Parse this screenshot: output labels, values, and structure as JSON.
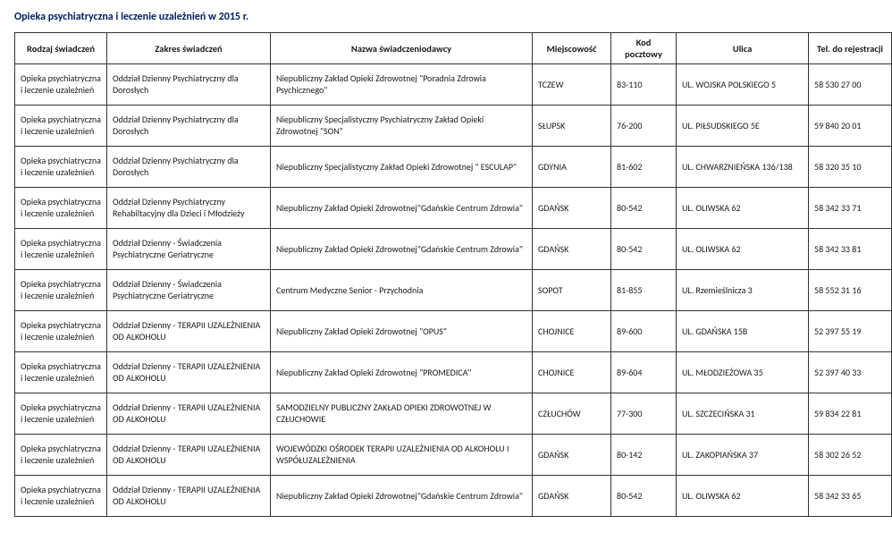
{
  "docTitle": "Opieka psychiatryczna i leczenie uzależnień w 2015 r.",
  "columns": [
    "Rodzaj świadczeń",
    "Zakres świadczeń",
    "Nazwa świadczeniodawcy",
    "Miejscowość",
    "Kod pocztowy",
    "Ulica",
    "Tel.  do rejestracji"
  ],
  "rows": [
    {
      "rodzaj": "Opieka psychiatryczna i leczenie uzależnień",
      "zakres": "Oddział Dzienny Psychiatryczny dla Dorosłych",
      "nazwa": "Niepubliczny Zakład Opieki Zdrowotnej \"Poradnia Zdrowia Psychicznego\"",
      "miejsc": "TCZEW",
      "kod": "83-110",
      "ulica": "UL. WOJSKA POLSKIEGO 5",
      "tel": "58 530 27 00"
    },
    {
      "rodzaj": "Opieka psychiatryczna i leczenie uzależnień",
      "zakres": "Oddział Dzienny Psychiatryczny dla Dorosłych",
      "nazwa": "Niepubliczny Specjalistyczny Psychiatryczny Zakład Opieki Zdrowotnej \"SON\"",
      "miejsc": "SŁUPSK",
      "kod": "76-200",
      "ulica": "UL. PIŁSUDSKIEGO 5E",
      "tel": "59 840 20 01"
    },
    {
      "rodzaj": "Opieka psychiatryczna i leczenie uzależnień",
      "zakres": "Oddział Dzienny Psychiatryczny dla Dorosłych",
      "nazwa": "Niepubliczny Specjalistyczny Zakład Opieki Zdrowotnej \" ESCULAP\"",
      "miejsc": "GDYNIA",
      "kod": "81-602",
      "ulica": "UL. CHWARZNIEŃSKA 136/138",
      "tel": "58 320 35 10"
    },
    {
      "rodzaj": "Opieka psychiatryczna i leczenie uzależnień",
      "zakres": "Oddział Dzienny Psychiatryczny Rehabiltacyjny dla Dzieci i Młodzieży",
      "nazwa": "Niepubliczny Zakład Opieki Zdrowotnej\"Gdańskie Centrum Zdrowia\"",
      "miejsc": "GDAŃSK",
      "kod": "80-542",
      "ulica": "UL. OLIWSKA 62",
      "tel": "58 342 33 71"
    },
    {
      "rodzaj": "Opieka psychiatryczna i leczenie uzależnień",
      "zakres": "Oddział Dzienny - Świadczenia Psychiatryczne Geriatryczne",
      "nazwa": "Niepubliczny Zakład Opieki Zdrowotnej\"Gdańskie Centrum Zdrowia\"",
      "miejsc": "GDAŃSK",
      "kod": "80-542",
      "ulica": "UL. OLIWSKA 62",
      "tel": "58 342 33 81"
    },
    {
      "rodzaj": "Opieka psychiatryczna i leczenie uzależnień",
      "zakres": "Oddział Dzienny - Świadczenia Psychiatryczne Geriatryczne",
      "nazwa": "Centrum Medyczne Senior - Przychodnia",
      "miejsc": "SOPOT",
      "kod": "81-855",
      "ulica": "UL. Rzemieślnicza 3",
      "tel": "58 552 31 16"
    },
    {
      "rodzaj": "Opieka psychiatryczna i leczenie uzależnień",
      "zakres": "Oddział Dzienny - TERAPII UZALEŻNIENIA OD ALKOHOLU",
      "nazwa": "Niepubliczny Zakład Opieki Zdrowotnej \"OPUS\"",
      "miejsc": "CHOJNICE",
      "kod": "89-600",
      "ulica": "UL. GDAŃSKA 15B",
      "tel": "52 397 55 19"
    },
    {
      "rodzaj": "Opieka psychiatryczna i leczenie uzależnień",
      "zakres": "Oddział Dzienny - TERAPII UZALEŻNIENIA OD ALKOHOLU",
      "nazwa": "Niepubliczny Zakład Opieki Zdrowotnej \"PROMEDICA\"",
      "miejsc": "CHOJNICE",
      "kod": "89-604",
      "ulica": "UL. MŁODZIEŻOWA 35",
      "tel": "52 397 40 33"
    },
    {
      "rodzaj": "Opieka psychiatryczna i leczenie uzależnień",
      "zakres": "Oddział Dzienny - TERAPII UZALEŻNIENIA OD ALKOHOLU",
      "nazwa": "SAMODZIELNY PUBLICZNY ZAKŁAD OPIEKI ZDROWOTNEJ W CZŁUCHOWIE",
      "miejsc": "CZŁUCHÓW",
      "kod": "77-300",
      "ulica": "UL. SZCZECIŃSKA 31",
      "tel": "59 834 22 81"
    },
    {
      "rodzaj": "Opieka psychiatryczna i leczenie uzależnień",
      "zakres": "Oddział Dzienny - TERAPII UZALEŻNIENIA OD ALKOHOLU",
      "nazwa": "WOJEWÓDZKI OŚRODEK TERAPII UZALEŻNIENIA OD ALKOHOLU I WSPÓŁUZALEŻNIENIA",
      "miejsc": "GDAŃSK",
      "kod": "80-142",
      "ulica": "UL. ZAKOPIAŃSKA 37",
      "tel": "58 302 26 52"
    },
    {
      "rodzaj": "Opieka psychiatryczna i leczenie uzależnień",
      "zakres": "Oddział Dzienny - TERAPII UZALEŻNIENIA OD ALKOHOLU",
      "nazwa": "Niepubliczny Zakład Opieki Zdrowotnej\"Gdańskie Centrum Zdrowia\"",
      "miejsc": "GDAŃSK",
      "kod": "80-542",
      "ulica": "UL. OLIWSKA 62",
      "tel": "58 342 33 65"
    }
  ]
}
